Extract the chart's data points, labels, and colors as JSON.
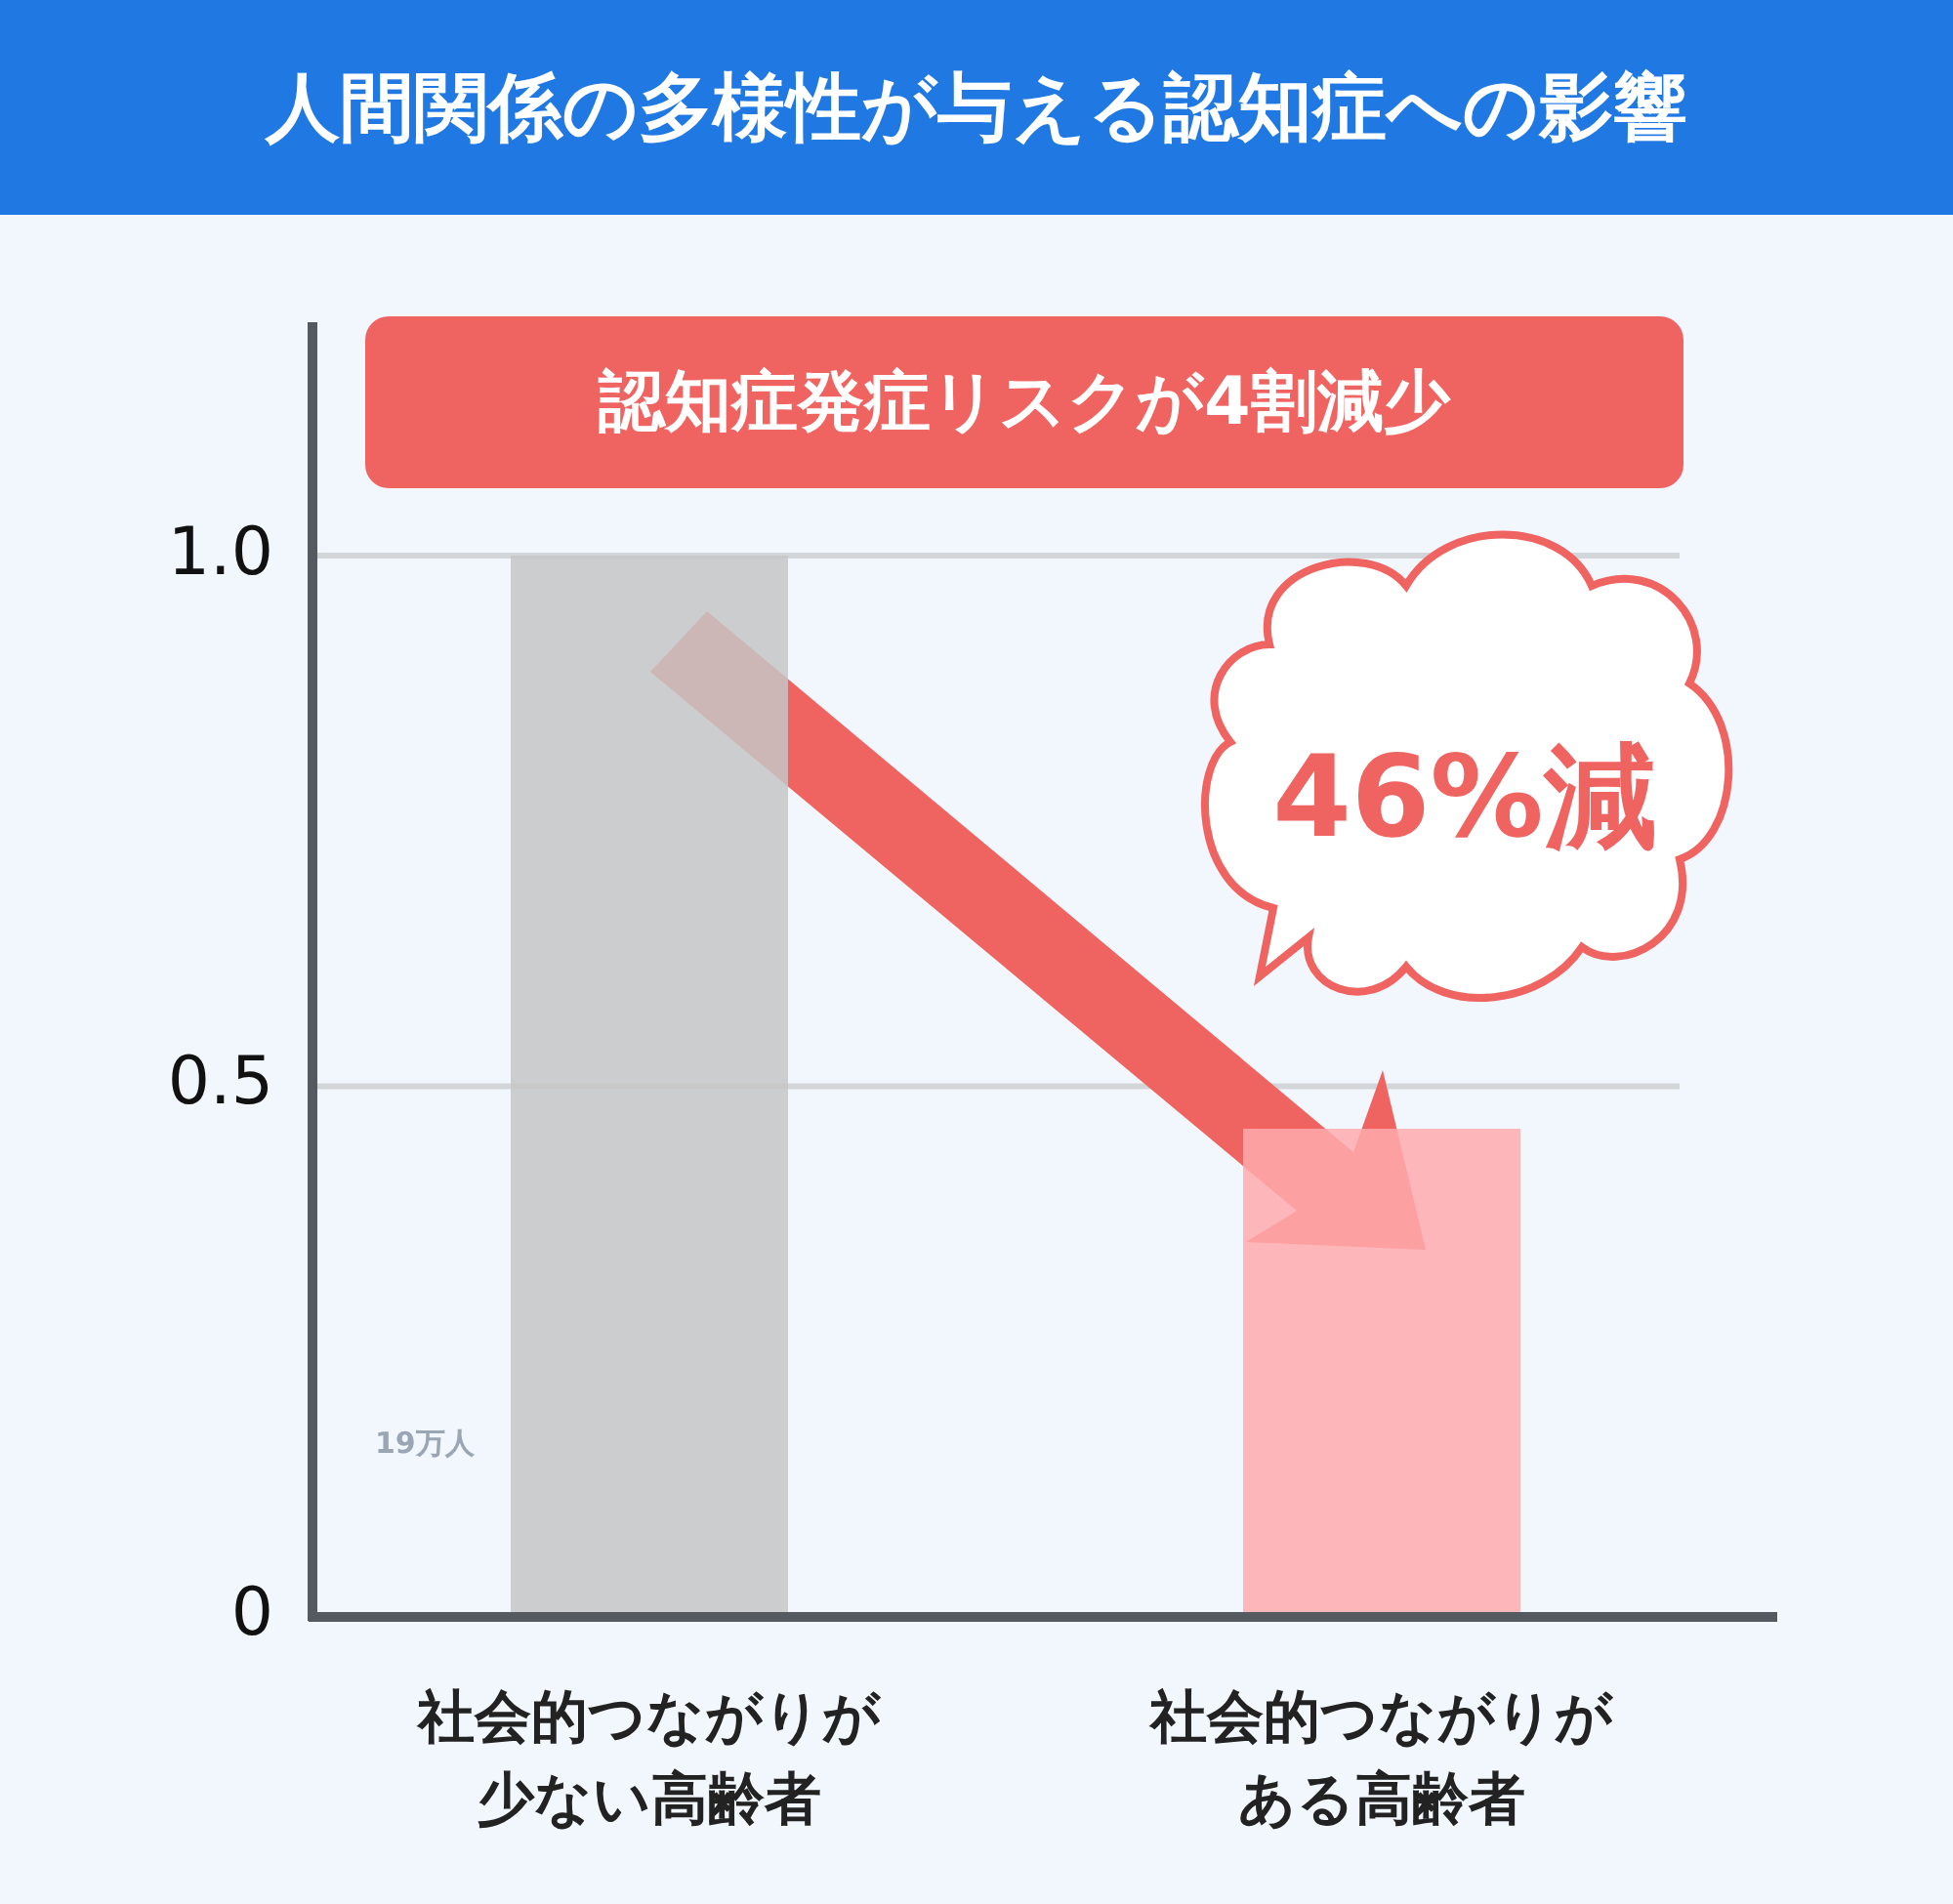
{
  "chart_data": {
    "type": "bar",
    "title": "人間関係の多様性が与える認知症への影響",
    "categories": [
      "社会的つながりが少ない高齢者",
      "社会的つながりがある高齢者"
    ],
    "values": [
      1.0,
      0.46
    ],
    "colors": [
      "#c6c6c6",
      "#ffaaad"
    ],
    "ylim": [
      0,
      1.22
    ],
    "yticks": [
      {
        "value": 0,
        "label": "0"
      },
      {
        "value": 0.5,
        "label": "0.5"
      },
      {
        "value": 1,
        "label": "1.0"
      }
    ],
    "grid": "y",
    "annotations": [
      "認知症発症リスクが4割減少",
      "46%減",
      "19万人"
    ]
  }
}
